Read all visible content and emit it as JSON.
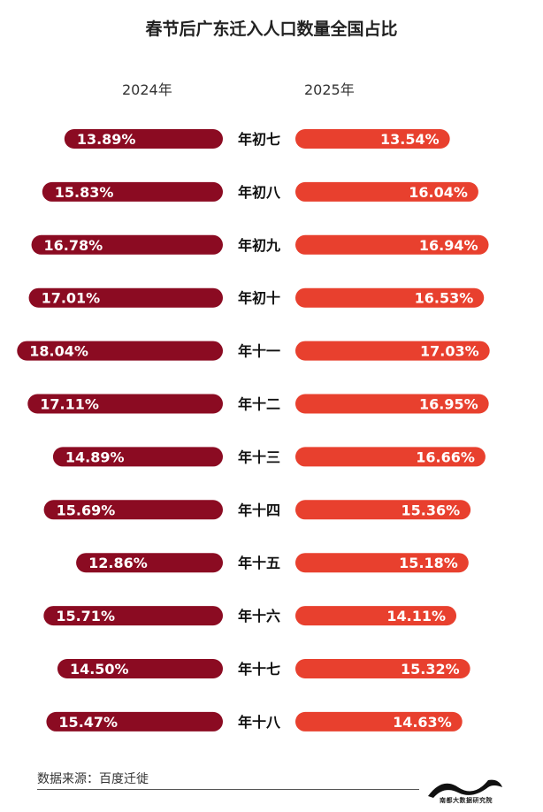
{
  "chart_data": {
    "type": "bar",
    "title": "春节后广东迁入人口数量全国占比",
    "categories": [
      "年初七",
      "年初八",
      "年初九",
      "年初十",
      "年十一",
      "年十二",
      "年十三",
      "年十四",
      "年十五",
      "年十六",
      "年十七",
      "年十八"
    ],
    "series": [
      {
        "name": "2024年",
        "values": [
          13.89,
          15.83,
          16.78,
          17.01,
          18.04,
          17.11,
          14.89,
          15.69,
          12.86,
          15.71,
          14.5,
          15.47
        ],
        "labels": [
          "13.89%",
          "15.83%",
          "16.78%",
          "17.01%",
          "18.04%",
          "17.11%",
          "14.89%",
          "15.69%",
          "12.86%",
          "15.71%",
          "14.50%",
          "15.47%"
        ],
        "color": "#8b0b22"
      },
      {
        "name": "2025年",
        "values": [
          13.54,
          16.04,
          16.94,
          16.53,
          17.03,
          16.95,
          16.66,
          15.36,
          15.18,
          14.11,
          15.32,
          14.63
        ],
        "labels": [
          "13.54%",
          "16.04%",
          "16.94%",
          "16.53%",
          "17.03%",
          "16.95%",
          "16.66%",
          "15.36%",
          "15.18%",
          "14.11%",
          "15.32%",
          "14.63%"
        ],
        "color": "#e8402e"
      }
    ],
    "layout": "butterfly"
  },
  "source_text": "数据来源：百度迁徙",
  "logo_text": "南都大数据研究院"
}
